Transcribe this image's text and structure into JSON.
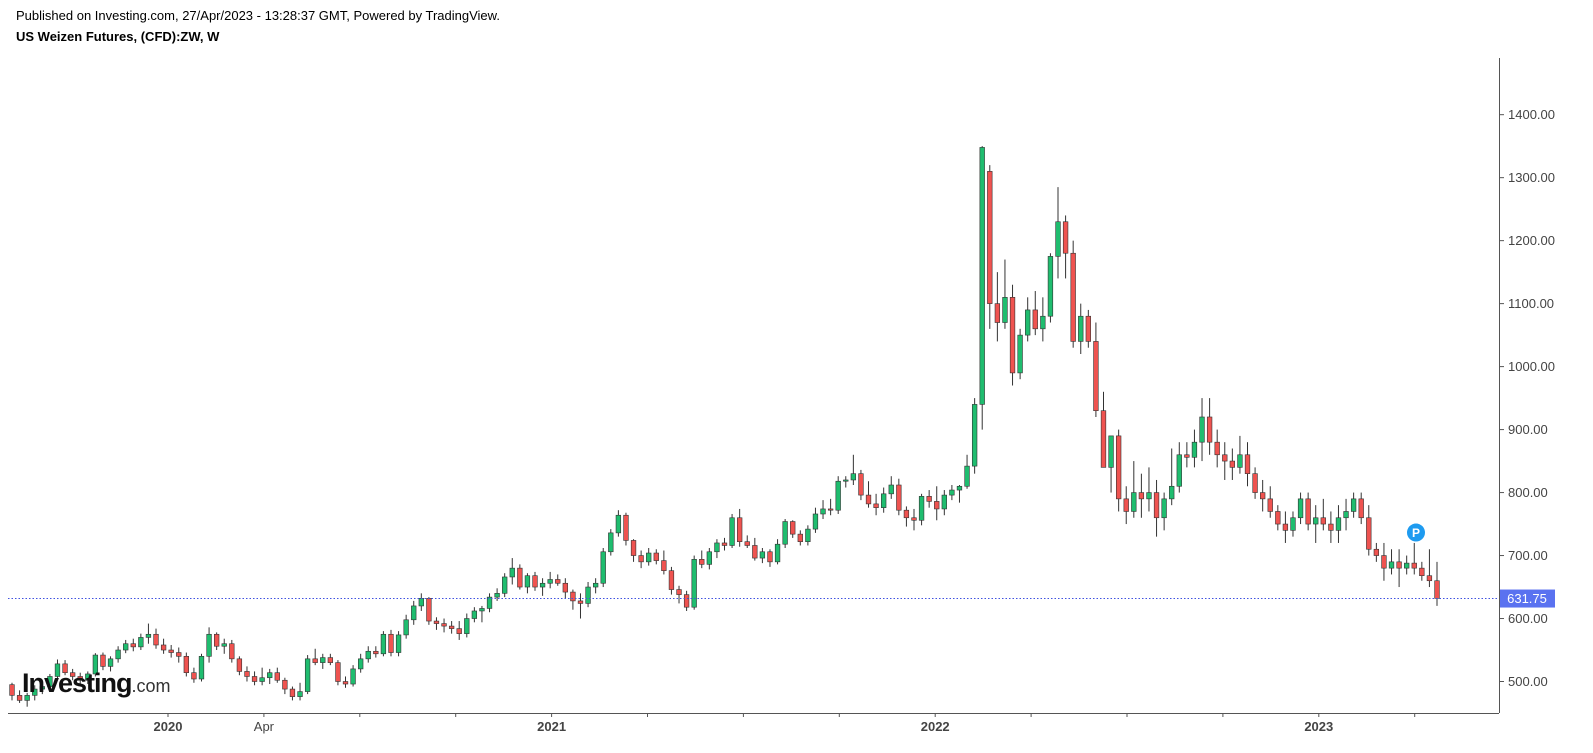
{
  "header": {
    "published": "Published on Investing.com, 27/Apr/2023 - 13:28:37 GMT, Powered by TradingView.",
    "title": "US Weizen Futures, (CFD):ZW, W"
  },
  "logo": {
    "main": "Investing",
    "suffix": ".com"
  },
  "colors": {
    "up": "#1fbd6f",
    "down": "#ef5350",
    "wick": "#333333",
    "price_line": "#3f51e0",
    "price_badge": "#5a72f0",
    "marker": "#1e9bf0"
  },
  "chart_data": {
    "type": "candlestick",
    "title": "US Weizen Futures, (CFD):ZW, W",
    "interval": "W",
    "ylim": [
      450,
      1490
    ],
    "y_ticks": [
      "500.00",
      "600.00",
      "700.00",
      "800.00",
      "900.00",
      "1000.00",
      "1100.00",
      "1200.00",
      "1300.00",
      "1400.00"
    ],
    "x_ticks": [
      {
        "label": "2020",
        "bold": true
      },
      {
        "label": "Apr",
        "bold": false
      },
      {
        "label": "",
        "bold": false
      },
      {
        "label": "",
        "bold": false
      },
      {
        "label": "2021",
        "bold": true
      },
      {
        "label": "",
        "bold": false
      },
      {
        "label": "",
        "bold": false
      },
      {
        "label": "",
        "bold": false
      },
      {
        "label": "2022",
        "bold": true
      },
      {
        "label": "",
        "bold": false
      },
      {
        "label": "",
        "bold": false
      },
      {
        "label": "",
        "bold": false
      },
      {
        "label": "2023",
        "bold": true
      },
      {
        "label": "",
        "bold": false
      }
    ],
    "last_price": "631.75",
    "last_price_value": 631.75,
    "marker_label": "P",
    "marker_value": 727,
    "candles": [
      [
        495,
        498,
        470,
        478
      ],
      [
        478,
        486,
        466,
        470
      ],
      [
        470,
        482,
        460,
        478
      ],
      [
        478,
        494,
        470,
        488
      ],
      [
        488,
        498,
        480,
        492
      ],
      [
        492,
        512,
        486,
        508
      ],
      [
        508,
        535,
        502,
        528
      ],
      [
        528,
        534,
        510,
        514
      ],
      [
        514,
        520,
        502,
        508
      ],
      [
        508,
        514,
        496,
        502
      ],
      [
        502,
        516,
        496,
        512
      ],
      [
        512,
        545,
        508,
        542
      ],
      [
        542,
        546,
        518,
        524
      ],
      [
        524,
        540,
        516,
        536
      ],
      [
        536,
        556,
        530,
        550
      ],
      [
        550,
        566,
        545,
        560
      ],
      [
        560,
        568,
        548,
        555
      ],
      [
        555,
        576,
        550,
        570
      ],
      [
        570,
        592,
        560,
        575
      ],
      [
        575,
        584,
        552,
        558
      ],
      [
        558,
        568,
        544,
        550
      ],
      [
        550,
        558,
        538,
        546
      ],
      [
        546,
        554,
        530,
        540
      ],
      [
        540,
        546,
        508,
        514
      ],
      [
        514,
        522,
        498,
        504
      ],
      [
        504,
        544,
        500,
        540
      ],
      [
        540,
        586,
        530,
        575
      ],
      [
        575,
        578,
        550,
        556
      ],
      [
        556,
        568,
        544,
        560
      ],
      [
        560,
        566,
        530,
        536
      ],
      [
        536,
        540,
        510,
        516
      ],
      [
        516,
        524,
        500,
        508
      ],
      [
        508,
        516,
        494,
        500
      ],
      [
        500,
        522,
        494,
        506
      ],
      [
        506,
        520,
        496,
        514
      ],
      [
        514,
        522,
        498,
        502
      ],
      [
        502,
        506,
        480,
        488
      ],
      [
        488,
        492,
        470,
        476
      ],
      [
        476,
        498,
        470,
        484
      ],
      [
        484,
        542,
        480,
        536
      ],
      [
        536,
        552,
        526,
        530
      ],
      [
        530,
        544,
        520,
        538
      ],
      [
        538,
        544,
        526,
        530
      ],
      [
        530,
        534,
        494,
        500
      ],
      [
        500,
        508,
        490,
        496
      ],
      [
        496,
        526,
        492,
        520
      ],
      [
        520,
        544,
        514,
        536
      ],
      [
        536,
        556,
        530,
        548
      ],
      [
        548,
        556,
        538,
        544
      ],
      [
        544,
        580,
        540,
        575
      ],
      [
        575,
        582,
        540,
        546
      ],
      [
        546,
        580,
        540,
        574
      ],
      [
        574,
        606,
        568,
        598
      ],
      [
        598,
        628,
        590,
        620
      ],
      [
        620,
        640,
        612,
        632
      ],
      [
        632,
        634,
        590,
        596
      ],
      [
        596,
        602,
        582,
        592
      ],
      [
        592,
        600,
        578,
        588
      ],
      [
        588,
        596,
        576,
        584
      ],
      [
        584,
        596,
        566,
        576
      ],
      [
        576,
        608,
        570,
        600
      ],
      [
        600,
        618,
        594,
        612
      ],
      [
        612,
        620,
        594,
        616
      ],
      [
        616,
        640,
        610,
        634
      ],
      [
        634,
        648,
        628,
        640
      ],
      [
        640,
        672,
        634,
        666
      ],
      [
        666,
        696,
        654,
        680
      ],
      [
        680,
        686,
        646,
        650
      ],
      [
        650,
        672,
        640,
        668
      ],
      [
        668,
        674,
        644,
        650
      ],
      [
        650,
        664,
        636,
        656
      ],
      [
        656,
        674,
        648,
        662
      ],
      [
        662,
        670,
        652,
        656
      ],
      [
        656,
        664,
        632,
        642
      ],
      [
        642,
        646,
        614,
        628
      ],
      [
        628,
        640,
        600,
        624
      ],
      [
        624,
        658,
        618,
        650
      ],
      [
        650,
        664,
        640,
        656
      ],
      [
        656,
        712,
        650,
        706
      ],
      [
        706,
        742,
        700,
        736
      ],
      [
        736,
        772,
        730,
        764
      ],
      [
        764,
        768,
        716,
        724
      ],
      [
        724,
        726,
        690,
        700
      ],
      [
        700,
        708,
        680,
        690
      ],
      [
        690,
        712,
        684,
        704
      ],
      [
        704,
        710,
        686,
        692
      ],
      [
        692,
        708,
        670,
        676
      ],
      [
        676,
        682,
        638,
        646
      ],
      [
        646,
        652,
        624,
        638
      ],
      [
        638,
        644,
        612,
        618
      ],
      [
        618,
        700,
        614,
        694
      ],
      [
        694,
        708,
        680,
        686
      ],
      [
        686,
        712,
        678,
        706
      ],
      [
        706,
        726,
        696,
        720
      ],
      [
        720,
        728,
        708,
        716
      ],
      [
        716,
        766,
        712,
        760
      ],
      [
        760,
        774,
        714,
        722
      ],
      [
        722,
        732,
        712,
        716
      ],
      [
        716,
        728,
        692,
        696
      ],
      [
        696,
        712,
        688,
        706
      ],
      [
        706,
        710,
        682,
        690
      ],
      [
        690,
        726,
        686,
        718
      ],
      [
        718,
        758,
        712,
        754
      ],
      [
        754,
        756,
        728,
        734
      ],
      [
        734,
        740,
        716,
        722
      ],
      [
        722,
        748,
        716,
        742
      ],
      [
        742,
        776,
        736,
        766
      ],
      [
        766,
        788,
        758,
        774
      ],
      [
        774,
        790,
        764,
        772
      ],
      [
        772,
        826,
        766,
        818
      ],
      [
        818,
        826,
        808,
        820
      ],
      [
        820,
        860,
        812,
        830
      ],
      [
        830,
        836,
        788,
        796
      ],
      [
        796,
        818,
        776,
        782
      ],
      [
        782,
        798,
        764,
        776
      ],
      [
        776,
        808,
        768,
        798
      ],
      [
        798,
        826,
        790,
        812
      ],
      [
        812,
        822,
        764,
        772
      ],
      [
        772,
        778,
        746,
        760
      ],
      [
        760,
        774,
        740,
        756
      ],
      [
        756,
        798,
        748,
        794
      ],
      [
        794,
        804,
        776,
        786
      ],
      [
        786,
        810,
        756,
        774
      ],
      [
        774,
        804,
        764,
        796
      ],
      [
        796,
        812,
        788,
        804
      ],
      [
        804,
        812,
        784,
        810
      ],
      [
        810,
        860,
        806,
        842
      ],
      [
        842,
        950,
        830,
        940
      ],
      [
        940,
        1350,
        900,
        1348
      ],
      [
        1310,
        1320,
        1060,
        1100
      ],
      [
        1100,
        1150,
        1040,
        1070
      ],
      [
        1070,
        1170,
        1060,
        1110
      ],
      [
        1110,
        1130,
        970,
        990
      ],
      [
        990,
        1060,
        980,
        1050
      ],
      [
        1050,
        1110,
        1040,
        1090
      ],
      [
        1090,
        1120,
        1050,
        1060
      ],
      [
        1060,
        1110,
        1040,
        1080
      ],
      [
        1080,
        1180,
        1070,
        1175
      ],
      [
        1175,
        1285,
        1140,
        1230
      ],
      [
        1230,
        1240,
        1140,
        1180
      ],
      [
        1180,
        1200,
        1030,
        1040
      ],
      [
        1040,
        1100,
        1020,
        1080
      ],
      [
        1080,
        1090,
        1030,
        1040
      ],
      [
        1040,
        1070,
        920,
        930
      ],
      [
        930,
        960,
        840,
        840
      ],
      [
        840,
        880,
        800,
        890
      ],
      [
        890,
        900,
        770,
        790
      ],
      [
        790,
        810,
        750,
        770
      ],
      [
        770,
        850,
        760,
        800
      ],
      [
        800,
        830,
        760,
        790
      ],
      [
        790,
        840,
        770,
        800
      ],
      [
        800,
        820,
        730,
        760
      ],
      [
        760,
        800,
        740,
        790
      ],
      [
        790,
        870,
        780,
        810
      ],
      [
        810,
        880,
        800,
        860
      ],
      [
        860,
        880,
        840,
        856
      ],
      [
        856,
        900,
        840,
        880
      ],
      [
        880,
        950,
        850,
        920
      ],
      [
        920,
        950,
        860,
        880
      ],
      [
        880,
        900,
        840,
        860
      ],
      [
        860,
        880,
        820,
        850
      ],
      [
        850,
        870,
        820,
        840
      ],
      [
        840,
        890,
        830,
        860
      ],
      [
        860,
        880,
        810,
        830
      ],
      [
        830,
        840,
        790,
        800
      ],
      [
        800,
        820,
        770,
        790
      ],
      [
        790,
        810,
        760,
        770
      ],
      [
        770,
        780,
        740,
        750
      ],
      [
        750,
        770,
        720,
        740
      ],
      [
        740,
        770,
        730,
        760
      ],
      [
        760,
        800,
        750,
        790
      ],
      [
        790,
        800,
        740,
        750
      ],
      [
        750,
        780,
        720,
        760
      ],
      [
        760,
        790,
        740,
        750
      ],
      [
        750,
        770,
        720,
        740
      ],
      [
        740,
        780,
        720,
        760
      ],
      [
        760,
        790,
        740,
        770
      ],
      [
        770,
        800,
        760,
        790
      ],
      [
        790,
        800,
        750,
        760
      ],
      [
        760,
        780,
        700,
        710
      ],
      [
        710,
        720,
        690,
        700
      ],
      [
        700,
        720,
        660,
        680
      ],
      [
        680,
        710,
        670,
        690
      ],
      [
        690,
        710,
        650,
        680
      ],
      [
        680,
        700,
        670,
        688
      ],
      [
        688,
        720,
        670,
        680
      ],
      [
        680,
        690,
        660,
        668
      ],
      [
        668,
        710,
        650,
        660
      ],
      [
        660,
        690,
        620,
        632
      ]
    ]
  }
}
